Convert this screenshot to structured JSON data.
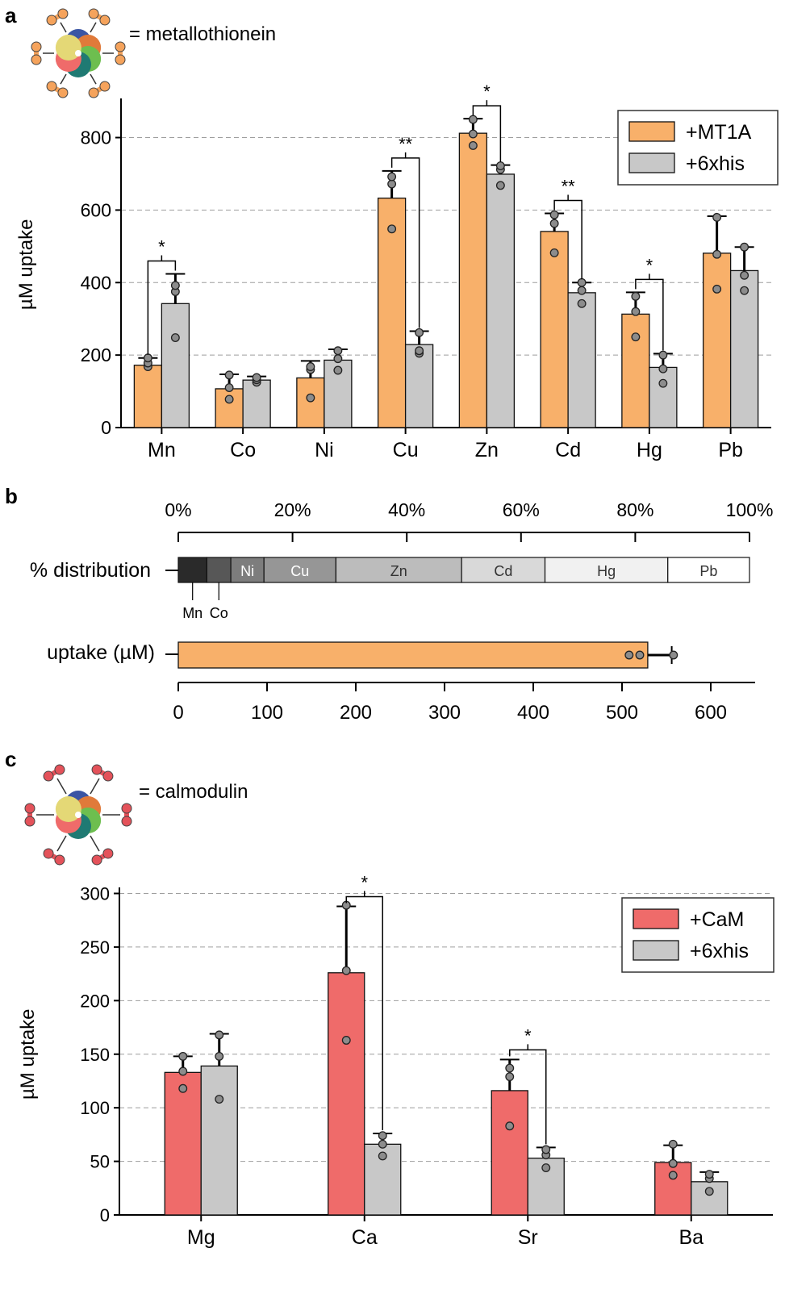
{
  "panels": {
    "a": {
      "letter": "a",
      "legend_text": "= metallothionein"
    },
    "b": {
      "letter": "b"
    },
    "c": {
      "letter": "c",
      "legend_text": "= calmodulin"
    }
  },
  "colors": {
    "mt1a": "#f8b06a",
    "cam": "#ef6b6a",
    "his": "#c8c8c8",
    "bead_mt": "#f5a35c",
    "bead_cam": "#e4525a",
    "point": "#8c8c8c",
    "grid": "#9e9e9e",
    "dist": [
      "#2a2a2a",
      "#575757",
      "#7d7d7d",
      "#969696",
      "#bcbcbc",
      "#d9d9d9",
      "#f1f1f1",
      "#ffffff"
    ],
    "dist_text": [
      "#ffffff",
      "#ffffff",
      "#ffffff",
      "#ffffff",
      "#333333",
      "#333333",
      "#333333",
      "#333333"
    ]
  },
  "icons": {
    "mt": "metallothionein-construct-icon",
    "cam": "calmodulin-construct-icon"
  },
  "chart_data": [
    {
      "panel": "a",
      "type": "bar",
      "ylabel": "µM uptake",
      "ylim": [
        0,
        900
      ],
      "yticks": [
        0,
        200,
        400,
        600,
        800
      ],
      "grid": "horizontal dashed",
      "legend_placement": "top-right",
      "categories": [
        "Mn",
        "Co",
        "Ni",
        "Cu",
        "Zn",
        "Cd",
        "Hg",
        "Pb"
      ],
      "series": [
        {
          "name": "+MT1A",
          "color": "#f8b06a",
          "values": [
            172,
            107,
            137,
            633,
            812,
            541,
            313,
            481
          ],
          "errors": [
            20,
            40,
            47,
            75,
            40,
            50,
            60,
            102
          ],
          "points": [
            [
              168,
              178,
              192
            ],
            [
              78,
              110,
              145
            ],
            [
              82,
              160,
              168
            ],
            [
              548,
              672,
              692
            ],
            [
              778,
              810,
              850
            ],
            [
              482,
              563,
              587
            ],
            [
              250,
              320,
              362
            ],
            [
              382,
              478,
              580
            ]
          ]
        },
        {
          "name": "+6xhis",
          "color": "#c8c8c8",
          "values": [
            342,
            131,
            186,
            229,
            699,
            372,
            166,
            433
          ],
          "errors": [
            82,
            10,
            30,
            37,
            25,
            28,
            38,
            65
          ],
          "points": [
            [
              248,
              375,
              392
            ],
            [
              125,
              132,
              138
            ],
            [
              158,
              190,
              212
            ],
            [
              205,
              212,
              262
            ],
            [
              668,
              712,
              722
            ],
            [
              342,
              378,
              400
            ],
            [
              122,
              162,
              200
            ],
            [
              378,
              420,
              498
            ]
          ]
        }
      ],
      "significance": [
        {
          "category": "Mn",
          "label": "*"
        },
        {
          "category": "Cu",
          "label": "**"
        },
        {
          "category": "Zn",
          "label": "*"
        },
        {
          "category": "Cd",
          "label": "**"
        },
        {
          "category": "Hg",
          "label": "*"
        }
      ]
    },
    {
      "panel": "b",
      "type": "bar",
      "rows": [
        "% distribution",
        "uptake (µM)"
      ],
      "distribution": {
        "axis_ticks": [
          "0%",
          "20%",
          "40%",
          "60%",
          "80%",
          "100%"
        ],
        "segments": [
          {
            "label": "Mn",
            "percent": 5.0
          },
          {
            "label": "Co",
            "percent": 4.2
          },
          {
            "label": "Ni",
            "percent": 5.8
          },
          {
            "label": "Cu",
            "percent": 12.6
          },
          {
            "label": "Zn",
            "percent": 22.0
          },
          {
            "label": "Cd",
            "percent": 14.6
          },
          {
            "label": "Hg",
            "percent": 21.5
          },
          {
            "label": "Pb",
            "percent": 14.3
          }
        ],
        "outside_labels": [
          "Mn",
          "Co"
        ]
      },
      "uptake": {
        "value": 529,
        "error": 27,
        "points": [
          508,
          520,
          558
        ],
        "xlim": [
          0,
          650
        ],
        "xticks": [
          0,
          100,
          200,
          300,
          400,
          500,
          600
        ]
      }
    },
    {
      "panel": "c",
      "type": "bar",
      "ylabel": "µM uptake",
      "ylim": [
        0,
        300
      ],
      "yticks": [
        0,
        50,
        100,
        150,
        200,
        250,
        300
      ],
      "grid": "horizontal dashed",
      "legend_placement": "top-right",
      "categories": [
        "Mg",
        "Ca",
        "Sr",
        "Ba"
      ],
      "series": [
        {
          "name": "+CaM",
          "color": "#ef6b6a",
          "values": [
            133,
            226,
            116,
            49
          ],
          "errors": [
            15,
            62,
            29,
            16
          ],
          "points": [
            [
              118,
              134,
              148
            ],
            [
              163,
              228,
              289
            ],
            [
              83,
              129,
              137
            ],
            [
              37,
              48,
              66
            ]
          ]
        },
        {
          "name": "+6xhis",
          "color": "#c8c8c8",
          "values": [
            139,
            66,
            53,
            31
          ],
          "errors": [
            30,
            10,
            10,
            9
          ],
          "points": [
            [
              108,
              148,
              168
            ],
            [
              55,
              66,
              74
            ],
            [
              44,
              56,
              61
            ],
            [
              22,
              34,
              38
            ]
          ]
        }
      ],
      "significance": [
        {
          "category": "Ca",
          "label": "*"
        },
        {
          "category": "Sr",
          "label": "*"
        }
      ]
    }
  ]
}
